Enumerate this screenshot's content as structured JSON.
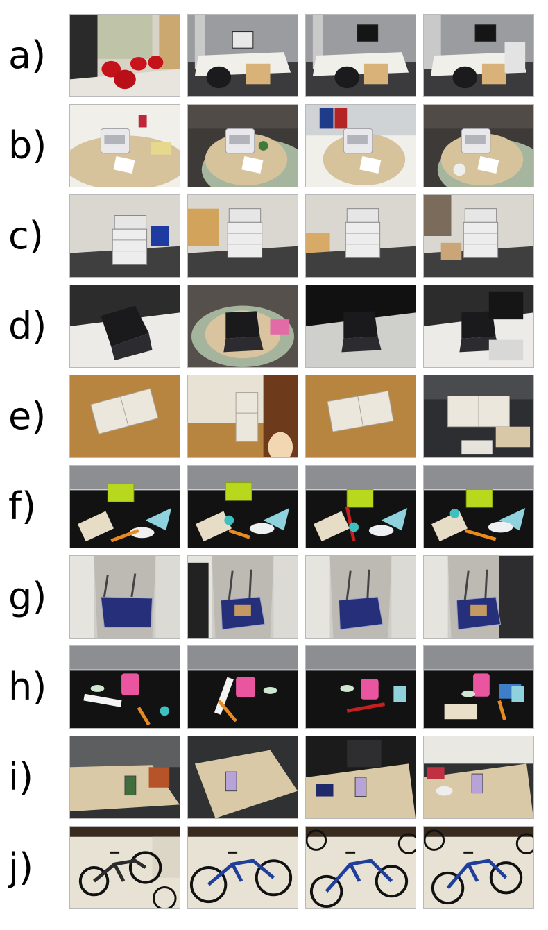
{
  "figure": {
    "rows": [
      {
        "label": "a)",
        "scene": "office chairs and cubicle desks",
        "images": [
          "red-lounge-chairs",
          "cubicle-desk-with-monitor",
          "cubicle-desk-with-chair",
          "desk-with-monitor-and-printer"
        ]
      },
      {
        "label": "b)",
        "scene": "sheet-fed scanner on tables",
        "images": [
          "scanner-on-desk",
          "scanner-on-round-table",
          "scanner-near-bins",
          "scanner-on-sofa-table"
        ]
      },
      {
        "label": "c)",
        "scene": "office multifunction printer",
        "images": [
          "printer-near-chair",
          "printer-by-desk",
          "printer-front-view",
          "printer-by-boxes"
        ]
      },
      {
        "label": "d)",
        "scene": "black laptop",
        "images": [
          "laptop-on-desk",
          "laptop-on-round-table",
          "laptop-dark-desk",
          "laptop-by-monitor"
        ]
      },
      {
        "label": "e)",
        "scene": "refrigerator in kitchen",
        "images": [
          "fridge-top-view",
          "fridge-in-kitchen",
          "fridge-tilted-view",
          "fridge-dark-room"
        ]
      },
      {
        "label": "f)",
        "scene": "object cluster on black floor",
        "images": [
          "cluster-view-1",
          "cluster-view-2",
          "cluster-view-3",
          "cluster-view-4"
        ]
      },
      {
        "label": "g)",
        "scene": "blue hand cart in hallway",
        "images": [
          "cart-hallway-1",
          "cart-hallway-2",
          "cart-hallway-3",
          "cart-hallway-4"
        ]
      },
      {
        "label": "h)",
        "scene": "pink bucket and objects",
        "images": [
          "bucket-view-1",
          "bucket-view-2",
          "bucket-view-3",
          "bucket-view-4"
        ]
      },
      {
        "label": "i)",
        "scene": "juice carton on table",
        "images": [
          "carton-on-table-1",
          "carton-on-table-2",
          "carton-on-desk",
          "carton-on-cluttered-desk"
        ]
      },
      {
        "label": "j)",
        "scene": "bicycle on wall",
        "images": [
          "bicycle-view-1",
          "bicycle-view-2",
          "bicycle-view-3",
          "bicycle-view-4"
        ]
      }
    ]
  },
  "colors": {
    "floor_gray": "#4a4a4a",
    "wall_white": "#d9d9d4",
    "desk_wood": "#cdb58a",
    "cubicle_gray": "#8d8f92",
    "black_mat": "#151515",
    "carpet_green": "#a9b9a0",
    "hallway_floor": "#bfbcb6",
    "bike_blue": "#1f3f9a"
  }
}
